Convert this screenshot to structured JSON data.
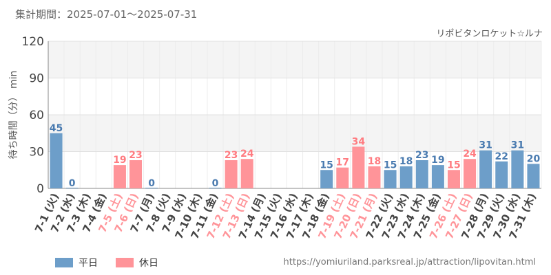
{
  "header": {
    "period": "集計期間：2025-07-01～2025-07-31",
    "attraction": "リポビタンロケット☆ルナ"
  },
  "legend": {
    "weekday": "平日",
    "holiday": "休日"
  },
  "footer": {
    "url": "https://yomiuriland.parksreal.jp/attraction/lipovitan.html"
  },
  "colors": {
    "weekday": "#6d9ec9",
    "holiday": "#ff9499",
    "weekday_label": "#4a7bb0",
    "holiday_label": "#ff7b80",
    "band": "#f4f4f4",
    "grid": "#e0e0e0"
  },
  "chart_data": {
    "type": "bar",
    "ylabel": "待ち時間（分） min",
    "ylim": [
      0,
      120
    ],
    "yticks": [
      0,
      30,
      60,
      90,
      120
    ],
    "categories": [
      "7-1 (火)",
      "7-2 (水)",
      "7-3 (木)",
      "7-4 (金)",
      "7-5 (土)",
      "7-6 (日)",
      "7-7 (月)",
      "7-8 (火)",
      "7-9 (水)",
      "7-10 (木)",
      "7-11 (金)",
      "7-12 (土)",
      "7-13 (日)",
      "7-14 (月)",
      "7-15 (火)",
      "7-16 (水)",
      "7-17 (木)",
      "7-18 (金)",
      "7-19 (土)",
      "7-20 (日)",
      "7-21 (月)",
      "7-22 (火)",
      "7-23 (水)",
      "7-24 (木)",
      "7-25 (金)",
      "7-26 (土)",
      "7-27 (日)",
      "7-28 (月)",
      "7-29 (火)",
      "7-30 (水)",
      "7-31 (木)"
    ],
    "values": [
      45,
      0,
      null,
      null,
      19,
      23,
      0,
      null,
      null,
      null,
      0,
      23,
      24,
      null,
      null,
      null,
      null,
      15,
      17,
      34,
      18,
      15,
      18,
      23,
      19,
      15,
      24,
      31,
      22,
      31,
      20
    ],
    "day_type": [
      "weekday",
      "weekday",
      "weekday",
      "weekday",
      "holiday",
      "holiday",
      "weekday",
      "weekday",
      "weekday",
      "weekday",
      "weekday",
      "holiday",
      "holiday",
      "weekday",
      "weekday",
      "weekday",
      "weekday",
      "weekday",
      "holiday",
      "holiday",
      "holiday",
      "weekday",
      "weekday",
      "weekday",
      "weekday",
      "holiday",
      "holiday",
      "weekday",
      "weekday",
      "weekday",
      "weekday"
    ],
    "data_labels": {
      "0": "45",
      "1": "0",
      "4": "19",
      "5": "23",
      "6": "0",
      "10": "0",
      "11": "23",
      "12": "24",
      "17": "15",
      "18": "17",
      "19": "34",
      "20": "18",
      "21": "15",
      "22": "18",
      "23": "23",
      "24": "19",
      "25": "15",
      "26": "24",
      "27": "31",
      "28": "22",
      "29": "31",
      "30": "20"
    }
  }
}
